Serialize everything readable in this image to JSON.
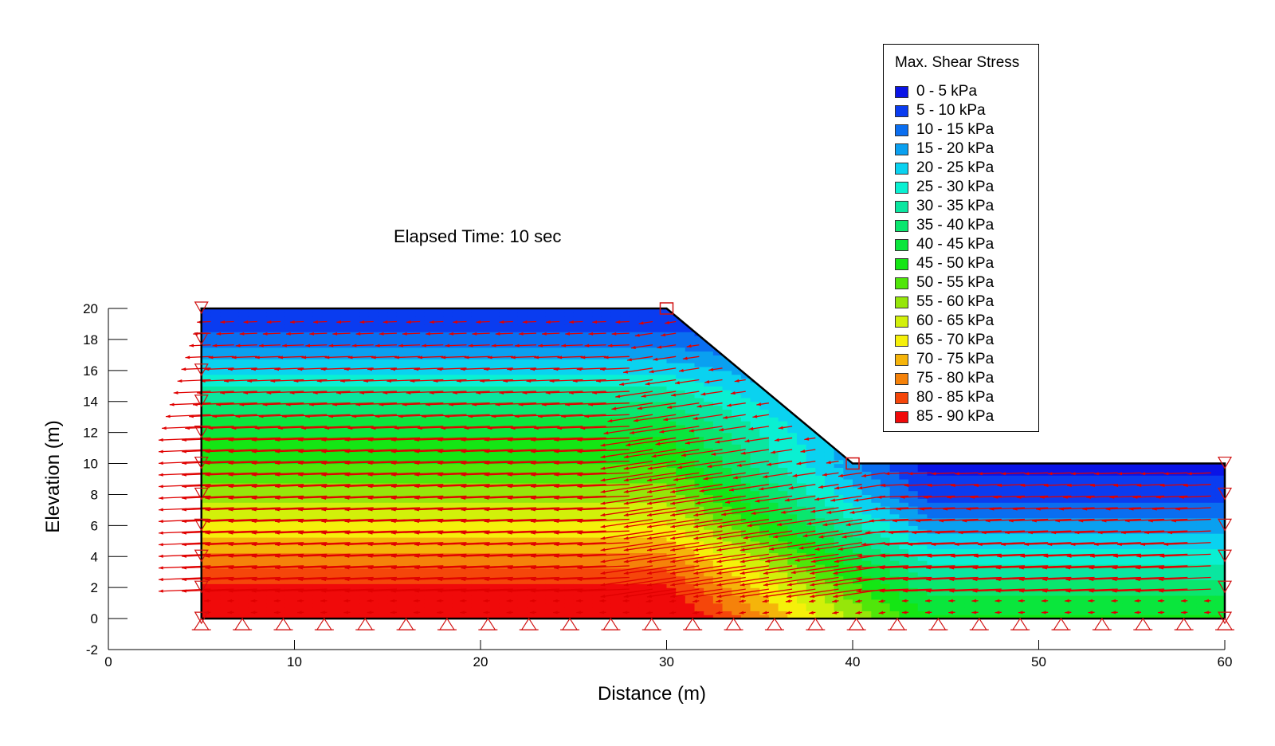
{
  "chart_data": {
    "type": "heatmap",
    "annotation": "Elapsed Time: 10 sec",
    "xlabel": "Distance (m)",
    "ylabel": "Elevation (m)",
    "xlim": [
      0,
      60
    ],
    "ylim": [
      -2,
      20
    ],
    "x_ticks": [
      0,
      10,
      20,
      30,
      40,
      50,
      60
    ],
    "y_ticks": [
      -2,
      0,
      2,
      4,
      6,
      8,
      10,
      12,
      14,
      16,
      18,
      20
    ],
    "geometry": {
      "outline": [
        [
          5,
          0
        ],
        [
          60,
          0
        ],
        [
          60,
          10
        ],
        [
          40,
          10
        ],
        [
          30,
          20
        ],
        [
          5,
          20
        ]
      ],
      "slope_crest": [
        30,
        20
      ],
      "slope_toe": [
        40,
        10
      ]
    },
    "legend": {
      "title": "Max. Shear Stress",
      "entries": [
        {
          "label": "0 - 5 kPa",
          "color": "#0a14e6"
        },
        {
          "label": "5 - 10 kPa",
          "color": "#0a3cf0"
        },
        {
          "label": "10 - 15 kPa",
          "color": "#0a6ef0"
        },
        {
          "label": "15 - 20 kPa",
          "color": "#0aa0f0"
        },
        {
          "label": "20 - 25 kPa",
          "color": "#0ad2f0"
        },
        {
          "label": "25 - 30 kPa",
          "color": "#0af0d2"
        },
        {
          "label": "30 - 35 kPa",
          "color": "#0ae6a0"
        },
        {
          "label": "35 - 40 kPa",
          "color": "#0ae66e"
        },
        {
          "label": "40 - 45 kPa",
          "color": "#0ae63c"
        },
        {
          "label": "45 - 50 kPa",
          "color": "#14e614"
        },
        {
          "label": "50 - 55 kPa",
          "color": "#50e60a"
        },
        {
          "label": "55 - 60 kPa",
          "color": "#96e60a"
        },
        {
          "label": "60 - 65 kPa",
          "color": "#d2f00a"
        },
        {
          "label": "65 - 70 kPa",
          "color": "#f5f00a"
        },
        {
          "label": "70 - 75 kPa",
          "color": "#f5b40a"
        },
        {
          "label": "75 - 80 kPa",
          "color": "#f5820a"
        },
        {
          "label": "80 - 85 kPa",
          "color": "#f5460a"
        },
        {
          "label": "85 - 90 kPa",
          "color": "#f00a0a"
        }
      ]
    },
    "stress_bands_left": [
      {
        "elevation": 20,
        "kPa": 5
      },
      {
        "elevation": 18,
        "kPa": 12
      },
      {
        "elevation": 16,
        "kPa": 24
      },
      {
        "elevation": 14,
        "kPa": 35
      },
      {
        "elevation": 12,
        "kPa": 44
      },
      {
        "elevation": 10,
        "kPa": 50
      },
      {
        "elevation": 8,
        "kPa": 58
      },
      {
        "elevation": 6,
        "kPa": 66
      },
      {
        "elevation": 4,
        "kPa": 74
      },
      {
        "elevation": 2,
        "kPa": 81
      },
      {
        "elevation": 0,
        "kPa": 86
      }
    ],
    "stress_bands_right": [
      {
        "elevation": 10,
        "kPa": 3
      },
      {
        "elevation": 8,
        "kPa": 8
      },
      {
        "elevation": 6,
        "kPa": 18
      },
      {
        "elevation": 4,
        "kPa": 28
      },
      {
        "elevation": 2,
        "kPa": 38
      },
      {
        "elevation": 0,
        "kPa": 46
      }
    ],
    "vector_color": "#e00000",
    "support_color": "#d01010"
  }
}
